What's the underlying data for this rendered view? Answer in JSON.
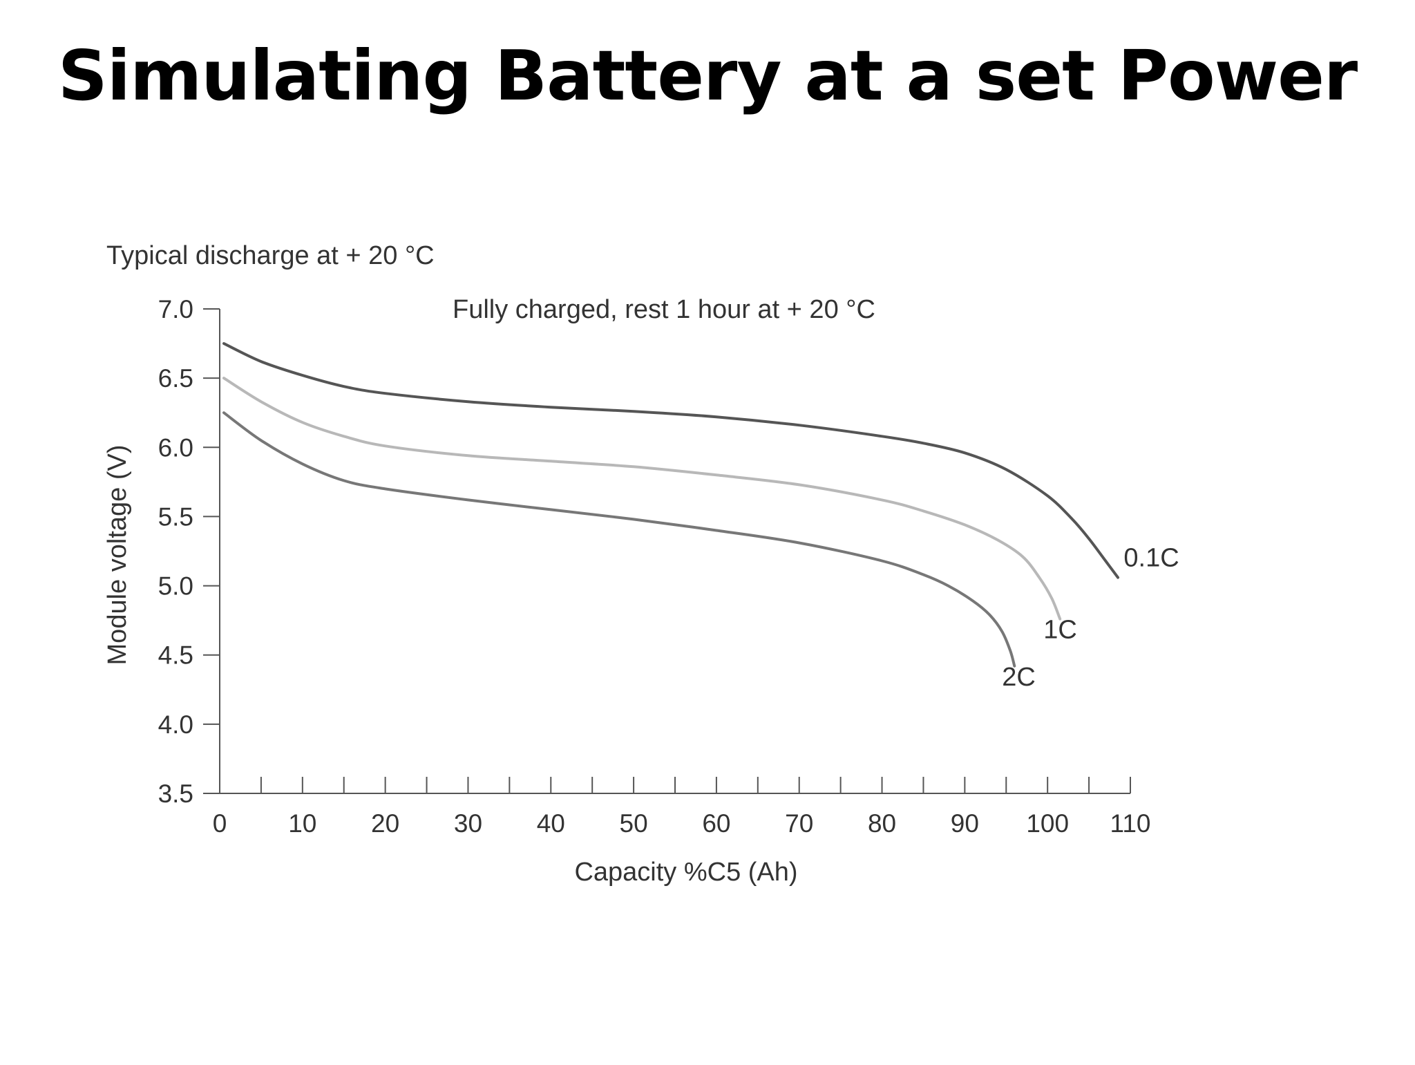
{
  "slide": {
    "title": "Simulating Battery at a set Power"
  },
  "chart_data": {
    "type": "line",
    "title": "Typical discharge at + 20 °C",
    "subtitle": "Fully charged, rest 1 hour at + 20 °C",
    "xlabel": "Capacity %C5 (Ah)",
    "ylabel": "Module voltage (V)",
    "xlim": [
      0,
      110
    ],
    "ylim": [
      3.5,
      7.0
    ],
    "x_ticks": [
      0,
      10,
      20,
      30,
      40,
      50,
      60,
      70,
      80,
      90,
      100,
      110
    ],
    "y_ticks": [
      3.5,
      4.0,
      4.5,
      5.0,
      5.5,
      6.0,
      6.5,
      7.0
    ],
    "grid": false,
    "legend": "none",
    "series": [
      {
        "name": "0.1C",
        "color": "#555555",
        "x": [
          0.5,
          5,
          10,
          15,
          20,
          30,
          40,
          50,
          60,
          70,
          80,
          85,
          90,
          95,
          100,
          103,
          105,
          107,
          108.5
        ],
        "y": [
          6.75,
          6.62,
          6.52,
          6.44,
          6.39,
          6.33,
          6.29,
          6.26,
          6.22,
          6.16,
          6.08,
          6.03,
          5.96,
          5.84,
          5.65,
          5.48,
          5.34,
          5.18,
          5.06
        ]
      },
      {
        "name": "1C",
        "color": "#b8b8b8",
        "x": [
          0.5,
          5,
          10,
          15,
          20,
          30,
          40,
          50,
          60,
          70,
          80,
          85,
          90,
          94,
          97,
          99,
          100.5,
          101.5
        ],
        "y": [
          6.5,
          6.33,
          6.18,
          6.08,
          6.01,
          5.94,
          5.9,
          5.86,
          5.8,
          5.73,
          5.62,
          5.54,
          5.44,
          5.33,
          5.21,
          5.06,
          4.91,
          4.76
        ]
      },
      {
        "name": "2C",
        "color": "#777777",
        "x": [
          0.5,
          5,
          10,
          15,
          20,
          30,
          40,
          50,
          60,
          70,
          80,
          85,
          88,
          91,
          93,
          94.5,
          95.5,
          96
        ],
        "y": [
          6.25,
          6.05,
          5.88,
          5.76,
          5.7,
          5.62,
          5.55,
          5.48,
          5.4,
          5.31,
          5.18,
          5.08,
          5.0,
          4.89,
          4.79,
          4.67,
          4.53,
          4.42
        ]
      }
    ],
    "annotations": [
      {
        "text": "0.1C",
        "x": 109.2,
        "y": 5.14
      },
      {
        "text": "1C",
        "x": 99.5,
        "y": 4.62
      },
      {
        "text": "2C",
        "x": 94.5,
        "y": 4.28
      }
    ],
    "colors": {
      "axis": "#555555",
      "text": "#333333"
    }
  }
}
